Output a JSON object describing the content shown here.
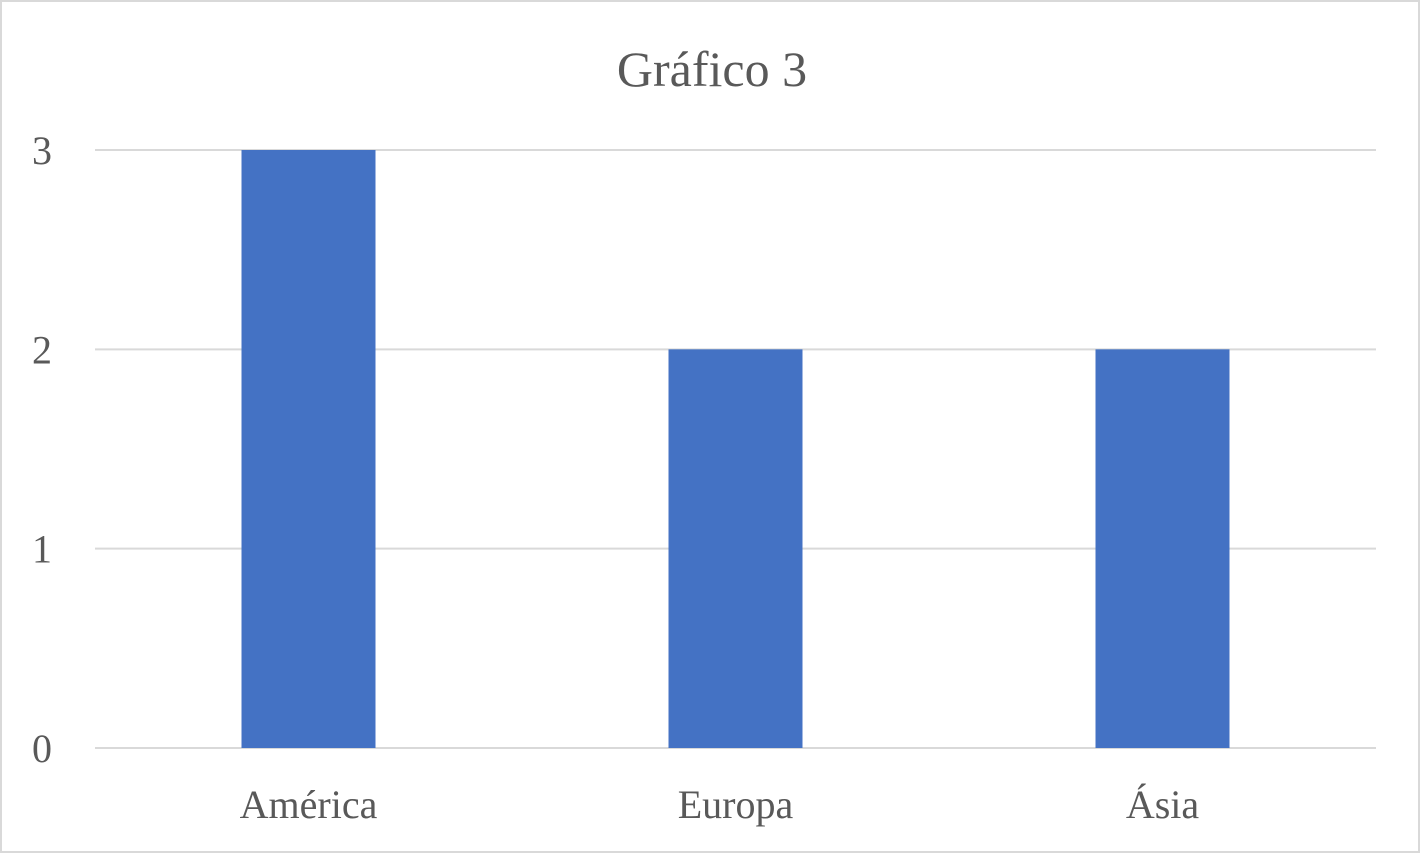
{
  "chart_data": {
    "type": "bar",
    "title": "Gráfico 3",
    "categories": [
      "América",
      "Europa",
      "Ásia"
    ],
    "values": [
      3,
      2,
      2
    ],
    "xlabel": "",
    "ylabel": "",
    "ylim": [
      0,
      3
    ],
    "yticks": [
      0,
      1,
      2,
      3
    ],
    "grid": true,
    "legend": "none",
    "bar_color": "#4472c4",
    "grid_color": "#d9d9d9",
    "text_color": "#595959"
  }
}
